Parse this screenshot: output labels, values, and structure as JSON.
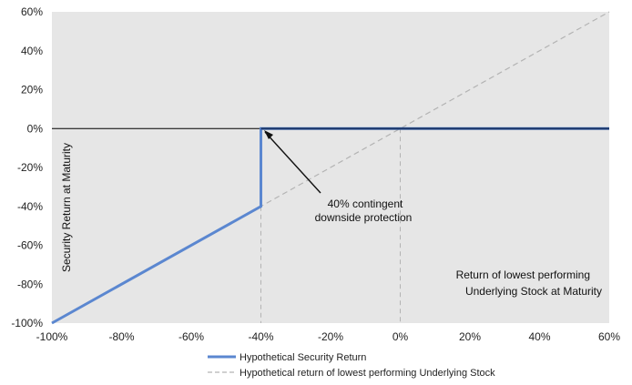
{
  "chart_data": {
    "type": "line",
    "xlim": [
      -1.0,
      0.6
    ],
    "ylim": [
      -1.0,
      0.6
    ],
    "x_ticks": [
      -1.0,
      -0.8,
      -0.6,
      -0.4,
      -0.2,
      0.0,
      0.2,
      0.4,
      0.6
    ],
    "y_ticks": [
      -1.0,
      -0.8,
      -0.6,
      -0.4,
      -0.2,
      0.0,
      0.2,
      0.4,
      0.6
    ],
    "x_tick_labels": [
      "-100%",
      "-80%",
      "-60%",
      "-40%",
      "-20%",
      "0%",
      "20%",
      "40%",
      "60%"
    ],
    "y_tick_labels": [
      "-100%",
      "-80%",
      "-60%",
      "-40%",
      "-20%",
      "0%",
      "20%",
      "40%",
      "60%"
    ],
    "ylabel": "Security Return at Maturity",
    "xlabel_lines": [
      "Return of lowest performing",
      "Underlying Stock at Maturity"
    ],
    "annotation_lines": [
      "40% contingent",
      "downside protection"
    ],
    "series": [
      {
        "name": "Hypothetical Security Return",
        "color": "#5b87d0",
        "style": "solid",
        "x": [
          -1.0,
          -0.4,
          -0.4,
          0.6
        ],
        "y": [
          -1.0,
          -0.4,
          0.0,
          0.0
        ]
      },
      {
        "name": "Hypothetical return of lowest performing Underlying Stock",
        "color": "#b3b3b3",
        "style": "dashed",
        "x": [
          -1.0,
          0.6
        ],
        "y": [
          -1.0,
          0.6
        ]
      }
    ],
    "reference_lines": [
      {
        "axis": "x",
        "value": -0.4,
        "style": "dashed",
        "color": "#b3b3b3"
      },
      {
        "axis": "x",
        "value": 0.0,
        "style": "dashed",
        "color": "#b3b3b3"
      },
      {
        "axis": "y",
        "value": 0.0,
        "style": "solid",
        "color": "#000000"
      }
    ],
    "zero_line_overlay_color": "#1f3a6e",
    "background": "#e6e6e6",
    "grid": false,
    "legend_position": "bottom"
  }
}
